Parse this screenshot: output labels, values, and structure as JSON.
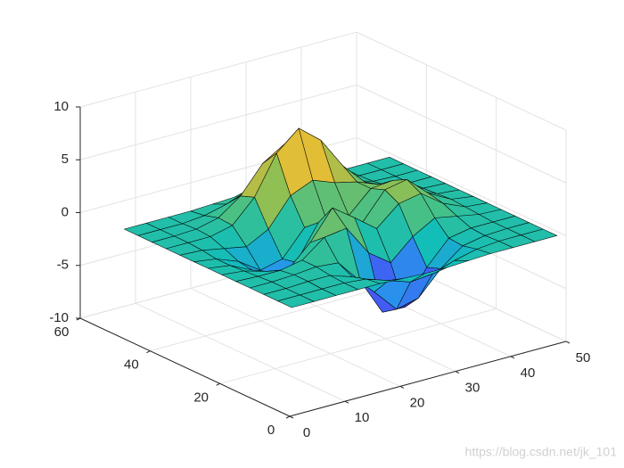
{
  "chart_data": {
    "type": "surface",
    "x": [
      1,
      5,
      9,
      13,
      17,
      21,
      25,
      29,
      33,
      37,
      41,
      45,
      49
    ],
    "y": [
      1,
      5,
      9,
      13,
      17,
      21,
      25,
      29,
      33,
      37,
      41,
      45,
      49
    ],
    "z": [
      [
        0,
        0,
        0,
        0,
        0,
        -0.1,
        -0.2,
        -0.2,
        -0.1,
        0,
        0,
        0,
        0
      ],
      [
        0,
        0,
        0,
        0,
        -0.2,
        -0.9,
        -1.6,
        -1.4,
        -0.7,
        -0.2,
        0,
        0,
        0
      ],
      [
        0,
        0,
        0.1,
        0.1,
        -0.6,
        -2.6,
        -4.8,
        -4.3,
        -2.1,
        -0.5,
        -0.1,
        0,
        0
      ],
      [
        0,
        0,
        0.1,
        0.3,
        0.1,
        -2.2,
        -5.7,
        -5.8,
        -2.6,
        -0.4,
        0,
        0,
        0
      ],
      [
        0,
        -0.1,
        -0.1,
        0.3,
        1.9,
        2.2,
        -0.7,
        -2.2,
        -0.3,
        0.9,
        0.5,
        0.1,
        0
      ],
      [
        0,
        -0.2,
        -0.8,
        -1.2,
        0.8,
        3.5,
        2.0,
        0.4,
        2.2,
        2.6,
        1.1,
        0.2,
        0
      ],
      [
        0,
        -0.3,
        -1.3,
        -2.8,
        -1.7,
        1.5,
        1.0,
        0.4,
        2.9,
        3.3,
        1.4,
        0.3,
        0
      ],
      [
        0,
        -0.3,
        -1.1,
        -2.5,
        -2.0,
        0.4,
        0.5,
        0.4,
        2.4,
        2.6,
        1.1,
        0.2,
        0
      ],
      [
        0,
        -0.1,
        -0.5,
        -0.9,
        0.2,
        2.8,
        3.7,
        2.9,
        2.4,
        1.6,
        0.6,
        0.1,
        0
      ],
      [
        0,
        0,
        0,
        0.5,
        2.6,
        6.2,
        8.0,
        6.3,
        3.3,
        1.2,
        0.3,
        0,
        0
      ],
      [
        0,
        0,
        0.1,
        0.6,
        2.1,
        4.6,
        5.9,
        4.6,
        2.2,
        0.7,
        0.1,
        0,
        0
      ],
      [
        0,
        0,
        0,
        0.2,
        0.7,
        1.5,
        1.9,
        1.5,
        0.7,
        0.2,
        0,
        0,
        0
      ],
      [
        0,
        0,
        0,
        0,
        0.1,
        0.2,
        0.3,
        0.2,
        0.1,
        0,
        0,
        0,
        0
      ]
    ],
    "xlim": [
      0,
      50
    ],
    "ylim": [
      0,
      60
    ],
    "zlim": [
      -10,
      10
    ],
    "xticks": [
      0,
      10,
      20,
      30,
      40,
      50
    ],
    "yticks": [
      0,
      20,
      40,
      60
    ],
    "zticks": [
      -10,
      -5,
      0,
      5,
      10
    ],
    "grid": true,
    "colormap": "parula",
    "edge_color": "#000000"
  },
  "watermark": "https://blog.csdn.net/jk_101"
}
